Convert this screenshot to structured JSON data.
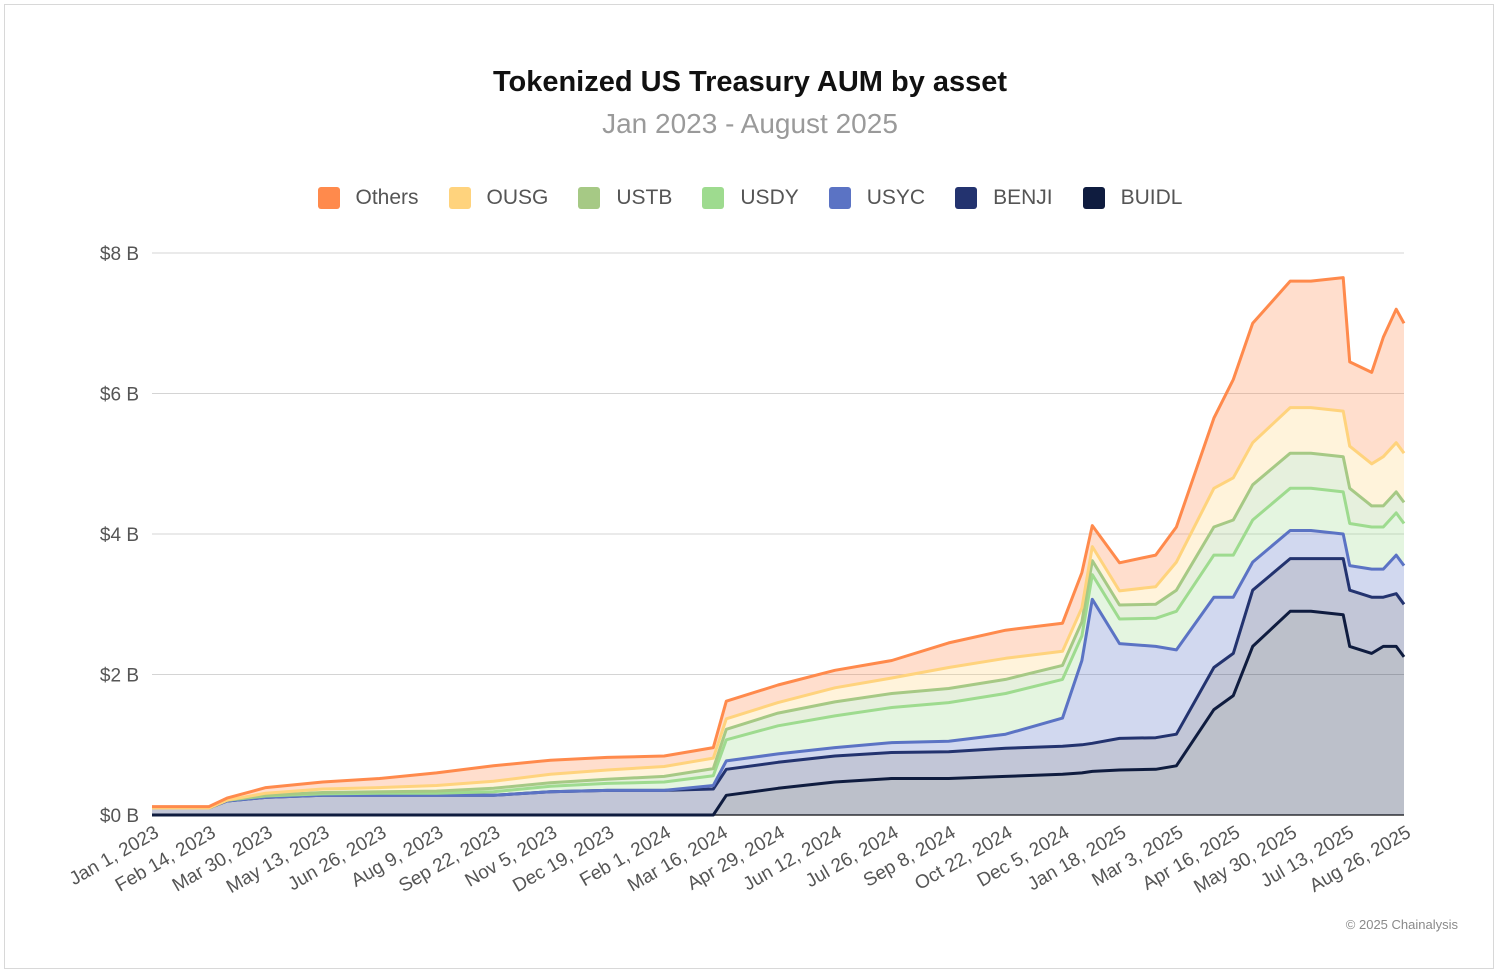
{
  "chart_data": {
    "type": "area",
    "title": "Tokenized US Treasury AUM by asset",
    "subtitle": "Jan 2023 - August 2025",
    "xlabel": "",
    "ylabel": "",
    "ylim": [
      0,
      8
    ],
    "y_ticks": [
      "$0 B",
      "$2 B",
      "$4 B",
      "$6 B",
      "$8 B"
    ],
    "y_tick_values": [
      0,
      2,
      4,
      6,
      8
    ],
    "x_ticks": [
      "Jan 1, 2023",
      "Feb 14, 2023",
      "Mar 30, 2023",
      "May 13, 2023",
      "Jun 26, 2023",
      "Aug 9, 2023",
      "Sep 22, 2023",
      "Nov 5, 2023",
      "Dec 19, 2023",
      "Feb 1, 2024",
      "Mar 16, 2024",
      "Apr 29, 2024",
      "Jun 12, 2024",
      "Jul 26, 2024",
      "Sep 8, 2024",
      "Oct 22, 2024",
      "Dec 5, 2024",
      "Jan 18, 2025",
      "Mar 3, 2025",
      "Apr 16, 2025",
      "May 30, 2025",
      "Jul 13, 2025",
      "Aug 26, 2025"
    ],
    "stacked": true,
    "grid": "horizontal",
    "legend_position": "top",
    "legend": [
      {
        "name": "Others",
        "color": "#FF8A4C"
      },
      {
        "name": "OUSG",
        "color": "#FFD37D"
      },
      {
        "name": "USTB",
        "color": "#A6C985"
      },
      {
        "name": "USDY",
        "color": "#9EDB8F"
      },
      {
        "name": "USYC",
        "color": "#5B73C4"
      },
      {
        "name": "BENJI",
        "color": "#23336F"
      },
      {
        "name": "BUIDL",
        "color": "#0F1C3F"
      }
    ],
    "x": [
      "2023-01-01",
      "2023-02-14",
      "2023-02-28",
      "2023-03-30",
      "2023-05-13",
      "2023-06-26",
      "2023-08-09",
      "2023-09-22",
      "2023-11-05",
      "2023-12-19",
      "2024-02-01",
      "2024-03-10",
      "2024-03-20",
      "2024-04-29",
      "2024-06-12",
      "2024-07-26",
      "2024-09-08",
      "2024-10-22",
      "2024-12-05",
      "2024-12-20",
      "2024-12-28",
      "2025-01-18",
      "2025-02-15",
      "2025-03-03",
      "2025-04-01",
      "2025-04-16",
      "2025-05-01",
      "2025-05-30",
      "2025-06-15",
      "2025-07-10",
      "2025-07-15",
      "2025-08-01",
      "2025-08-10",
      "2025-08-20",
      "2025-08-26"
    ],
    "series": [
      {
        "name": "BUIDL",
        "color": "#0F1C3F",
        "values": [
          0,
          0,
          0,
          0,
          0,
          0,
          0,
          0,
          0,
          0,
          0,
          0,
          0.28,
          0.38,
          0.47,
          0.52,
          0.52,
          0.55,
          0.58,
          0.6,
          0.62,
          0.64,
          0.65,
          0.7,
          1.5,
          1.7,
          2.4,
          2.9,
          2.9,
          2.85,
          2.4,
          2.3,
          2.4,
          2.4,
          2.25
        ]
      },
      {
        "name": "BENJI",
        "color": "#23336F",
        "values": [
          0.1,
          0.1,
          0.2,
          0.25,
          0.28,
          0.28,
          0.28,
          0.28,
          0.33,
          0.35,
          0.35,
          0.37,
          0.37,
          0.37,
          0.37,
          0.37,
          0.38,
          0.4,
          0.4,
          0.4,
          0.4,
          0.45,
          0.45,
          0.45,
          0.6,
          0.6,
          0.8,
          0.75,
          0.75,
          0.8,
          0.8,
          0.8,
          0.7,
          0.75,
          0.75
        ]
      },
      {
        "name": "USYC",
        "color": "#5B73C4",
        "values": [
          0,
          0,
          0,
          0,
          0,
          0,
          0,
          0,
          0,
          0,
          0,
          0.05,
          0.12,
          0.12,
          0.12,
          0.14,
          0.15,
          0.2,
          0.4,
          1.2,
          2.05,
          1.35,
          1.3,
          1.2,
          1.0,
          0.8,
          0.4,
          0.4,
          0.4,
          0.35,
          0.35,
          0.4,
          0.4,
          0.55,
          0.55
        ]
      },
      {
        "name": "USDY",
        "color": "#9EDB8F",
        "values": [
          0,
          0,
          0.01,
          0.02,
          0.02,
          0.03,
          0.03,
          0.05,
          0.08,
          0.1,
          0.12,
          0.14,
          0.3,
          0.4,
          0.45,
          0.5,
          0.55,
          0.58,
          0.55,
          0.35,
          0.35,
          0.35,
          0.4,
          0.55,
          0.6,
          0.6,
          0.6,
          0.6,
          0.6,
          0.6,
          0.6,
          0.6,
          0.6,
          0.6,
          0.6
        ]
      },
      {
        "name": "USTB",
        "color": "#A6C985",
        "values": [
          0,
          0,
          0,
          0.01,
          0.02,
          0.02,
          0.03,
          0.05,
          0.05,
          0.06,
          0.08,
          0.1,
          0.15,
          0.18,
          0.2,
          0.2,
          0.2,
          0.2,
          0.2,
          0.2,
          0.2,
          0.2,
          0.2,
          0.3,
          0.4,
          0.5,
          0.5,
          0.5,
          0.5,
          0.5,
          0.5,
          0.3,
          0.3,
          0.3,
          0.3
        ]
      },
      {
        "name": "OUSG",
        "color": "#FFD37D",
        "values": [
          0,
          0,
          0,
          0.03,
          0.05,
          0.06,
          0.08,
          0.1,
          0.12,
          0.13,
          0.14,
          0.15,
          0.15,
          0.15,
          0.2,
          0.22,
          0.3,
          0.3,
          0.2,
          0.2,
          0.2,
          0.2,
          0.25,
          0.4,
          0.55,
          0.6,
          0.6,
          0.65,
          0.65,
          0.65,
          0.6,
          0.6,
          0.7,
          0.7,
          0.7
        ]
      },
      {
        "name": "Others",
        "color": "#FF8A4C",
        "values": [
          0.02,
          0.02,
          0.03,
          0.08,
          0.1,
          0.13,
          0.18,
          0.22,
          0.2,
          0.18,
          0.15,
          0.15,
          0.25,
          0.25,
          0.25,
          0.25,
          0.35,
          0.4,
          0.4,
          0.5,
          0.3,
          0.4,
          0.45,
          0.5,
          1.0,
          1.4,
          1.7,
          1.8,
          1.8,
          1.9,
          1.2,
          1.3,
          1.7,
          1.9,
          1.85
        ]
      }
    ]
  },
  "copyright": "© 2025 Chainalysis"
}
